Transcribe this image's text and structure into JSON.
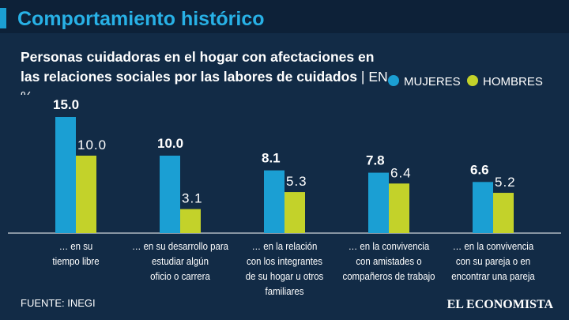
{
  "header": {
    "title": "Comportamiento histórico"
  },
  "chart_data": {
    "type": "bar",
    "title": "Personas cuidadoras en el hogar con afectaciones en las relaciones sociales por las labores de cuidados",
    "unit": "EN %",
    "categories": [
      "… en su\ntiempo libre",
      "… en su desarrollo para\nestudiar algún\noficio o carrera",
      "… en la relación\ncon los integrantes\nde su hogar u otros\nfamiliares",
      "… en la convivencia\ncon amistades o\ncompañeros de trabajo",
      "… en la convivencia\ncon su pareja o en\nencontrar una pareja"
    ],
    "series": [
      {
        "name": "MUJERES",
        "color": "#1b9fd3",
        "values": [
          15.0,
          10.0,
          8.1,
          7.8,
          6.6
        ],
        "value_labels": [
          "15.0",
          "10.0",
          "8.1",
          "7.8",
          "6.6"
        ]
      },
      {
        "name": "HOMBRES",
        "color": "#c3d22a",
        "values": [
          10.0,
          3.1,
          5.3,
          6.4,
          5.2
        ],
        "value_labels": [
          "10.0",
          "3.1",
          "5.3",
          "6.4",
          "5.2"
        ]
      }
    ],
    "source": "FUENTE: INEGI",
    "brand": "EL ECONOMISTA"
  }
}
